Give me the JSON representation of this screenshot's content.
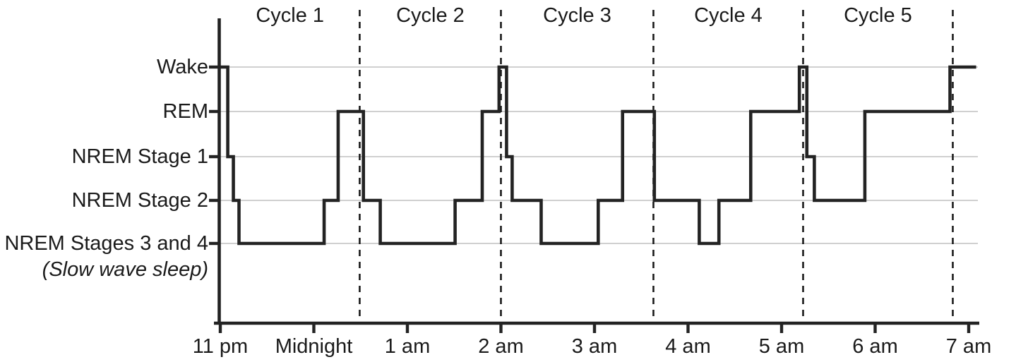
{
  "chart_data": {
    "type": "line",
    "subtype": "step-hypnogram",
    "title": "",
    "xlabel": "",
    "ylabel": "",
    "grid": "horizontal-light",
    "x_axis": {
      "unit": "clock-time",
      "ticks": [
        {
          "label": "11 pm",
          "hour": 0
        },
        {
          "label": "Midnight",
          "hour": 1
        },
        {
          "label": "1 am",
          "hour": 2
        },
        {
          "label": "2 am",
          "hour": 3
        },
        {
          "label": "3 am",
          "hour": 4
        },
        {
          "label": "4 am",
          "hour": 5
        },
        {
          "label": "5 am",
          "hour": 6
        },
        {
          "label": "6 am",
          "hour": 7
        },
        {
          "label": "7 am",
          "hour": 8
        }
      ]
    },
    "y_axis": {
      "stages": [
        {
          "key": "wake",
          "label": "Wake"
        },
        {
          "key": "rem",
          "label": "REM"
        },
        {
          "key": "n1",
          "label": "NREM Stage 1"
        },
        {
          "key": "n2",
          "label": "NREM Stage 2"
        },
        {
          "key": "n34",
          "label": "NREM Stages 3 and 4",
          "sublabel": "(Slow wave sleep)"
        }
      ]
    },
    "cycles": [
      {
        "label": "Cycle 1",
        "start_hour": 0.0,
        "end_hour": 1.49
      },
      {
        "label": "Cycle 2",
        "start_hour": 1.49,
        "end_hour": 3.0
      },
      {
        "label": "Cycle 3",
        "start_hour": 3.0,
        "end_hour": 4.63
      },
      {
        "label": "Cycle 4",
        "start_hour": 4.63,
        "end_hour": 6.23
      },
      {
        "label": "Cycle 5",
        "start_hour": 6.23,
        "end_hour": 7.83
      }
    ],
    "segments": [
      {
        "stage": "wake",
        "from": 0.0,
        "to": 0.08
      },
      {
        "stage": "n1",
        "from": 0.08,
        "to": 0.14
      },
      {
        "stage": "n2",
        "from": 0.14,
        "to": 0.2
      },
      {
        "stage": "n34",
        "from": 0.2,
        "to": 1.11
      },
      {
        "stage": "n2",
        "from": 1.11,
        "to": 1.26
      },
      {
        "stage": "rem",
        "from": 1.26,
        "to": 1.53
      },
      {
        "stage": "n2",
        "from": 1.53,
        "to": 1.71
      },
      {
        "stage": "n34",
        "from": 1.71,
        "to": 2.51
      },
      {
        "stage": "n2",
        "from": 2.51,
        "to": 2.8
      },
      {
        "stage": "rem",
        "from": 2.8,
        "to": 2.98
      },
      {
        "stage": "wake",
        "from": 2.98,
        "to": 3.06
      },
      {
        "stage": "n1",
        "from": 3.06,
        "to": 3.12
      },
      {
        "stage": "n2",
        "from": 3.12,
        "to": 3.43
      },
      {
        "stage": "n34",
        "from": 3.43,
        "to": 4.04
      },
      {
        "stage": "n2",
        "from": 4.04,
        "to": 4.3
      },
      {
        "stage": "rem",
        "from": 4.3,
        "to": 4.64
      },
      {
        "stage": "n2",
        "from": 4.64,
        "to": 5.12
      },
      {
        "stage": "n34",
        "from": 5.12,
        "to": 5.33
      },
      {
        "stage": "n2",
        "from": 5.33,
        "to": 5.67
      },
      {
        "stage": "rem",
        "from": 5.67,
        "to": 6.19
      },
      {
        "stage": "wake",
        "from": 6.19,
        "to": 6.27
      },
      {
        "stage": "n1",
        "from": 6.27,
        "to": 6.35
      },
      {
        "stage": "n2",
        "from": 6.35,
        "to": 6.89
      },
      {
        "stage": "rem",
        "from": 6.89,
        "to": 7.8
      },
      {
        "stage": "wake",
        "from": 7.8,
        "to": 8.08
      }
    ]
  },
  "colors": {
    "line": "#232323",
    "axis": "#232323",
    "grid": "#b5b5b5",
    "dashed": "#1a1a1a",
    "text": "#1a1a1a",
    "background": "#ffffff"
  }
}
